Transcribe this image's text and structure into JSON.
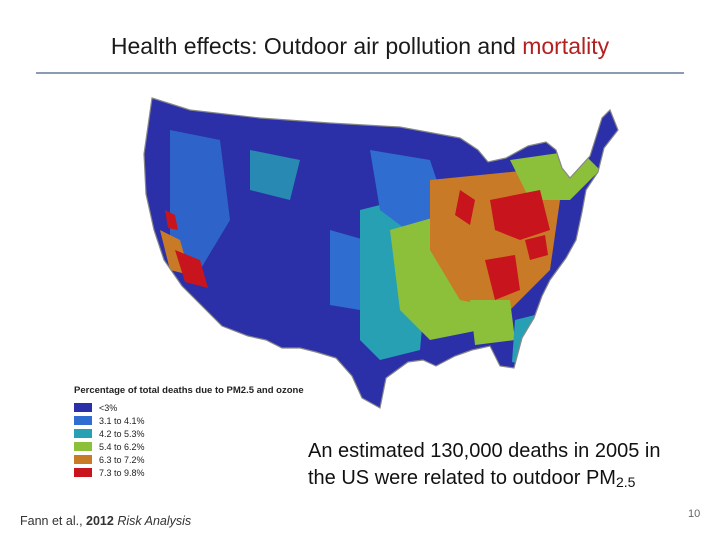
{
  "slide": {
    "title_main": "Health effects: Outdoor air pollution and",
    "title_accent": "mortality",
    "accent_color": "#b32020",
    "slide_number": "10"
  },
  "map": {
    "legend_title": "Percentage of total deaths due to PM2.5 and ozone",
    "legend": [
      {
        "label": "<3%",
        "color": "#2b2fa8"
      },
      {
        "label": "3.1 to 4.1%",
        "color": "#2f6dd0"
      },
      {
        "label": "4.2 to 5.3%",
        "color": "#28a0b4"
      },
      {
        "label": "5.4 to 6.2%",
        "color": "#8cbf3a"
      },
      {
        "label": "6.3 to 7.2%",
        "color": "#c87a26"
      },
      {
        "label": "7.3 to 9.8%",
        "color": "#c8141c"
      }
    ]
  },
  "citation": {
    "author": "Fann et al.,",
    "year": "2012",
    "journal": "Risk Analysis"
  },
  "caption": {
    "text": "An estimated 130,000 deaths in 2005 in the US were related to outdoor PM",
    "subscript": "2.5"
  }
}
